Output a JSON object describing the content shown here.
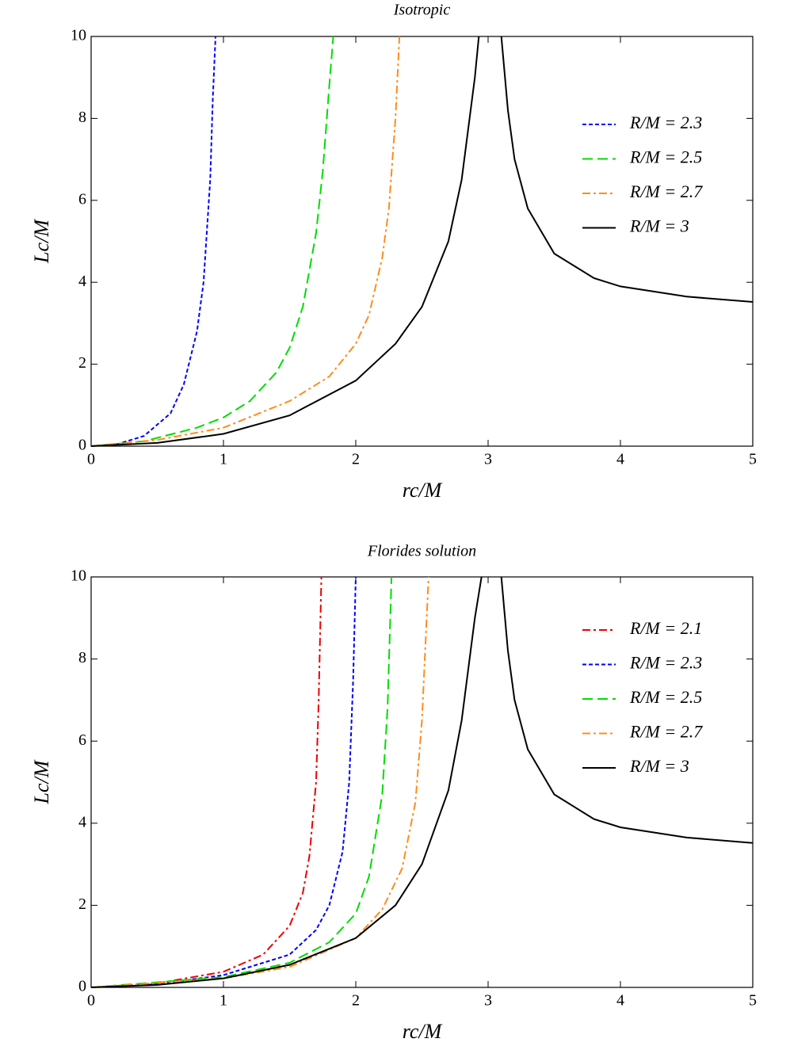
{
  "chart_data": [
    {
      "type": "line",
      "title": "Isotropic",
      "xlabel": "rc/M",
      "ylabel": "Lc/M",
      "xlim": [
        0,
        5
      ],
      "ylim": [
        0,
        10
      ],
      "xticks": [
        0,
        1,
        2,
        3,
        4,
        5
      ],
      "yticks": [
        0,
        2,
        4,
        6,
        8,
        10
      ],
      "legend": "upper right",
      "series": [
        {
          "name": "R/M = 2.3",
          "color": "#0000ff",
          "style": "dotted",
          "x": [
            0,
            0.2,
            0.4,
            0.6,
            0.7,
            0.8,
            0.85,
            0.9,
            0.92,
            0.94
          ],
          "values": [
            0,
            0.05,
            0.25,
            0.8,
            1.5,
            2.8,
            4,
            6.5,
            8.5,
            10
          ]
        },
        {
          "name": "R/M = 2.5",
          "color": "#00dd00",
          "style": "dashed",
          "x": [
            0,
            0.4,
            0.8,
            1.0,
            1.2,
            1.4,
            1.5,
            1.6,
            1.7,
            1.75,
            1.8,
            1.83
          ],
          "values": [
            0,
            0.12,
            0.45,
            0.7,
            1.1,
            1.8,
            2.4,
            3.4,
            5.2,
            6.7,
            8.8,
            10
          ]
        },
        {
          "name": "R/M = 2.7",
          "color": "#ff8c1a",
          "style": "dashdot",
          "x": [
            0,
            0.5,
            1,
            1.5,
            1.8,
            2.0,
            2.1,
            2.2,
            2.25,
            2.3,
            2.33
          ],
          "values": [
            0,
            0.15,
            0.45,
            1.1,
            1.7,
            2.5,
            3.2,
            4.6,
            5.8,
            8,
            10
          ]
        },
        {
          "name": "R/M = 3",
          "color": "#000000",
          "style": "solid",
          "x": [
            0,
            0.5,
            1,
            1.5,
            2,
            2.3,
            2.5,
            2.7,
            2.8,
            2.9,
            2.93,
            3.0,
            3.1,
            3.15,
            3.2,
            3.3,
            3.5,
            3.8,
            4,
            4.5,
            5
          ],
          "values": [
            0,
            0.08,
            0.3,
            0.75,
            1.6,
            2.5,
            3.4,
            5.0,
            6.5,
            9,
            10,
            null,
            10,
            8.2,
            7,
            5.8,
            4.7,
            4.1,
            3.9,
            3.65,
            3.52
          ]
        }
      ]
    },
    {
      "type": "line",
      "title": "Florides solution",
      "xlabel": "rc/M",
      "ylabel": "Lc/M",
      "xlim": [
        0,
        5
      ],
      "ylim": [
        0,
        10
      ],
      "xticks": [
        0,
        1,
        2,
        3,
        4,
        5
      ],
      "yticks": [
        0,
        2,
        4,
        6,
        8,
        10
      ],
      "legend": "upper right",
      "series": [
        {
          "name": "R/M = 2.1",
          "color": "#ee0000",
          "style": "dashdot",
          "x": [
            0,
            0.5,
            1,
            1.3,
            1.5,
            1.6,
            1.65,
            1.7,
            1.72,
            1.74
          ],
          "values": [
            0,
            0.1,
            0.38,
            0.8,
            1.5,
            2.3,
            3.2,
            5,
            7,
            10
          ]
        },
        {
          "name": "R/M = 2.3",
          "color": "#0000ff",
          "style": "dotted",
          "x": [
            0,
            0.5,
            1,
            1.5,
            1.7,
            1.8,
            1.9,
            1.95,
            1.98,
            2.0
          ],
          "values": [
            0,
            0.08,
            0.3,
            0.8,
            1.4,
            2,
            3.3,
            5,
            7.5,
            10
          ]
        },
        {
          "name": "R/M = 2.5",
          "color": "#00dd00",
          "style": "dashed",
          "x": [
            0,
            1,
            1.5,
            1.8,
            2.0,
            2.1,
            2.2,
            2.24,
            2.27
          ],
          "values": [
            0,
            0.25,
            0.6,
            1.1,
            1.8,
            2.7,
            4.7,
            6.8,
            10
          ]
        },
        {
          "name": "R/M = 2.7",
          "color": "#ff8c1a",
          "style": "dashdot",
          "x": [
            0,
            1,
            1.5,
            2,
            2.2,
            2.35,
            2.45,
            2.5,
            2.55
          ],
          "values": [
            0,
            0.22,
            0.5,
            1.2,
            1.9,
            2.9,
            4.5,
            6.5,
            10
          ]
        },
        {
          "name": "R/M = 3",
          "color": "#000000",
          "style": "solid",
          "x": [
            0,
            0.5,
            1,
            1.5,
            2,
            2.3,
            2.5,
            2.7,
            2.8,
            2.9,
            2.95,
            3.0,
            3.1,
            3.15,
            3.2,
            3.3,
            3.5,
            3.8,
            4,
            4.5,
            5
          ],
          "values": [
            0,
            0.06,
            0.22,
            0.55,
            1.2,
            2.0,
            3.0,
            4.8,
            6.5,
            9,
            10,
            null,
            10,
            8.2,
            7,
            5.8,
            4.7,
            4.1,
            3.9,
            3.65,
            3.52
          ]
        }
      ]
    }
  ]
}
